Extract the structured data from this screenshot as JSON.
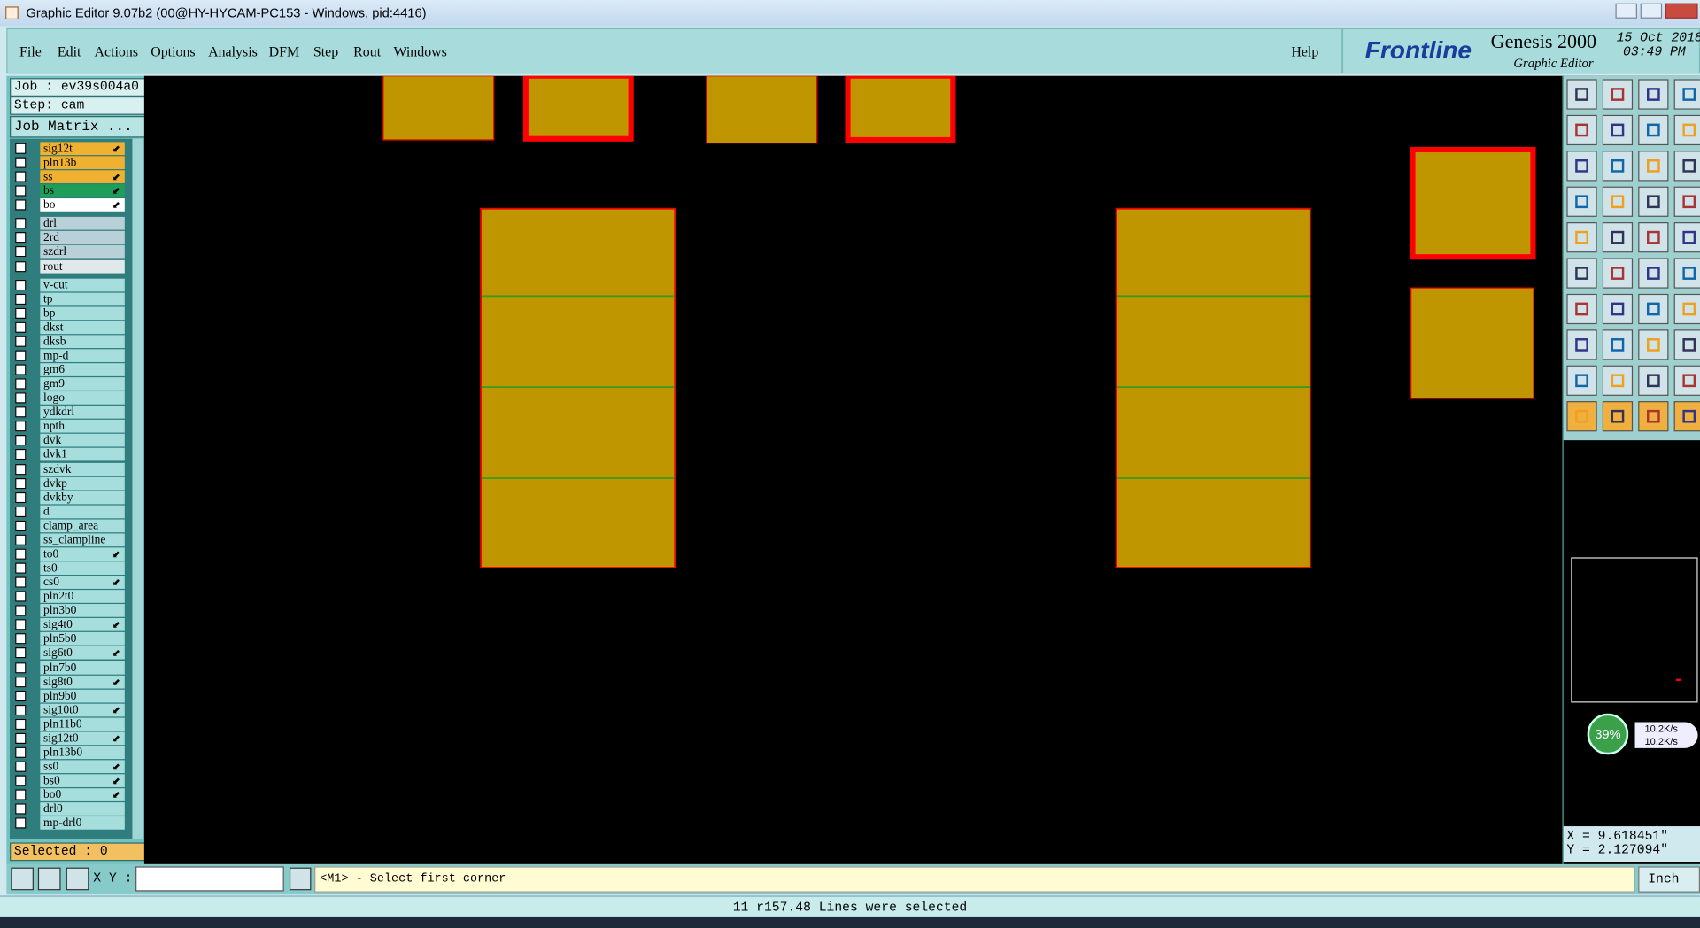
{
  "window_title": "Graphic Editor 9.07b2 (00@HY-HYCAM-PC153 - Windows, pid:4416)",
  "menu": [
    "File",
    "Edit",
    "Actions",
    "Options",
    "Analysis",
    "DFM",
    "Step",
    "Rout",
    "Windows"
  ],
  "help": "Help",
  "logo": {
    "brand": "Frontline",
    "product": "Genesis 2000",
    "subtitle": "Graphic Editor",
    "date": "15 Oct 2018",
    "time": "03:49 PM"
  },
  "job": "Job : ev39s004a0",
  "step": "Step: cam",
  "job_matrix": "Job Matrix ...",
  "layer_groups": [
    [
      {
        "name": "sig12t",
        "color": "#f0b030",
        "arrow": true
      },
      {
        "name": "pln13b",
        "color": "#f0b030",
        "arrow": false
      },
      {
        "name": "ss",
        "color": "#f0b030",
        "arrow": true
      },
      {
        "name": "bs",
        "color": "#1f9e5a",
        "arrow": true
      },
      {
        "name": "bo",
        "color": "#ffffff",
        "arrow": true
      }
    ],
    [
      {
        "name": "drl",
        "color": "#b8d0d8",
        "arrow": false
      },
      {
        "name": "2rd",
        "color": "#b8d0d8",
        "arrow": false
      },
      {
        "name": "szdrl",
        "color": "#b8d0d8",
        "arrow": false
      },
      {
        "name": "rout",
        "color": "#e0e8ea",
        "arrow": false
      }
    ],
    [
      {
        "name": "v-cut",
        "color": "#a6dede",
        "arrow": false
      },
      {
        "name": "tp",
        "color": "#a6dede",
        "arrow": false
      },
      {
        "name": "bp",
        "color": "#a6dede",
        "arrow": false
      },
      {
        "name": "dkst",
        "color": "#a6dede",
        "arrow": false
      },
      {
        "name": "dksb",
        "color": "#a6dede",
        "arrow": false
      },
      {
        "name": "mp-d",
        "color": "#a6dede",
        "arrow": false
      },
      {
        "name": "gm6",
        "color": "#a6dede",
        "arrow": false
      },
      {
        "name": "gm9",
        "color": "#a6dede",
        "arrow": false
      },
      {
        "name": "logo",
        "color": "#a6dede",
        "arrow": false
      },
      {
        "name": "ydkdrl",
        "color": "#a6dede",
        "arrow": false
      },
      {
        "name": "npth",
        "color": "#a6dede",
        "arrow": false
      },
      {
        "name": "dvk",
        "color": "#a6dede",
        "arrow": false
      },
      {
        "name": "dvk1",
        "color": "#a6dede",
        "arrow": false
      },
      {
        "name": "szdvk",
        "color": "#a6dede",
        "arrow": false
      },
      {
        "name": "dvkp",
        "color": "#a6dede",
        "arrow": false
      },
      {
        "name": "dvkby",
        "color": "#a6dede",
        "arrow": false
      },
      {
        "name": "d",
        "color": "#a6dede",
        "arrow": false
      },
      {
        "name": "clamp_area",
        "color": "#a6dede",
        "arrow": false
      },
      {
        "name": "ss_clampline",
        "color": "#a6dede",
        "arrow": false
      },
      {
        "name": "to0",
        "color": "#a6dede",
        "arrow": true
      },
      {
        "name": "ts0",
        "color": "#a6dede",
        "arrow": false
      },
      {
        "name": "cs0",
        "color": "#a6dede",
        "arrow": true
      },
      {
        "name": "pln2t0",
        "color": "#a6dede",
        "arrow": false
      },
      {
        "name": "pln3b0",
        "color": "#a6dede",
        "arrow": false
      },
      {
        "name": "sig4t0",
        "color": "#a6dede",
        "arrow": true
      },
      {
        "name": "pln5b0",
        "color": "#a6dede",
        "arrow": false
      },
      {
        "name": "sig6t0",
        "color": "#a6dede",
        "arrow": true
      },
      {
        "name": "pln7b0",
        "color": "#a6dede",
        "arrow": false
      },
      {
        "name": "sig8t0",
        "color": "#a6dede",
        "arrow": true
      },
      {
        "name": "pln9b0",
        "color": "#a6dede",
        "arrow": false
      },
      {
        "name": "sig10t0",
        "color": "#a6dede",
        "arrow": true
      },
      {
        "name": "pln11b0",
        "color": "#a6dede",
        "arrow": false
      },
      {
        "name": "sig12t0",
        "color": "#a6dede",
        "arrow": true
      },
      {
        "name": "pln13b0",
        "color": "#a6dede",
        "arrow": false
      },
      {
        "name": "ss0",
        "color": "#a6dede",
        "arrow": true
      },
      {
        "name": "bs0",
        "color": "#a6dede",
        "arrow": true
      },
      {
        "name": "bo0",
        "color": "#a6dede",
        "arrow": true
      },
      {
        "name": "drl0",
        "color": "#a6dede",
        "arrow": false
      },
      {
        "name": "mp-drl0",
        "color": "#a6dede",
        "arrow": false
      }
    ]
  ],
  "selected": "Selected : 0",
  "xy_label": "X Y :",
  "prompt": "<M1> - Select first corner",
  "coords": {
    "x": "X = 9.618451\"",
    "y": "Y = 2.127094\""
  },
  "unit": "Inch",
  "status": "11 r157.48 Lines were selected",
  "network": {
    "percent": "39%",
    "up": "10.2K/s",
    "down": "10.2K/s"
  }
}
